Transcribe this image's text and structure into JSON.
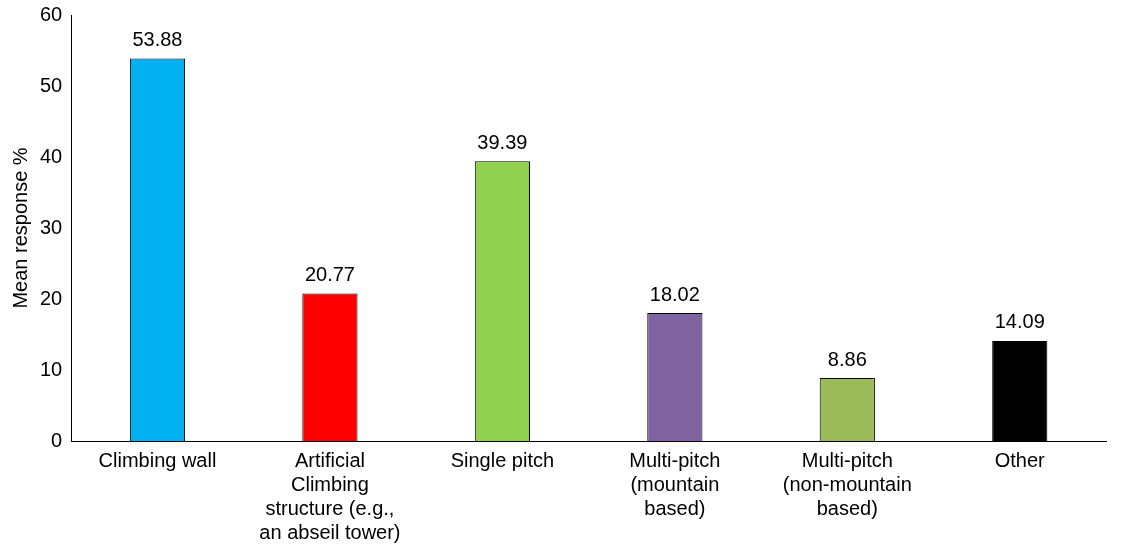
{
  "chart_data": {
    "type": "bar",
    "ylabel": "Mean response %",
    "categories": [
      "Climbing wall",
      "Artificial Climbing structure (e.g., an abseil tower)",
      "Single pitch",
      "Multi-pitch (mountain based)",
      "Multi-pitch (non-mountain based)",
      "Other"
    ],
    "values": [
      53.88,
      20.77,
      39.39,
      18.02,
      8.86,
      14.09
    ],
    "colors": [
      "#00b0f0",
      "#ff0000",
      "#92d050",
      "#8064a2",
      "#9bbb59",
      "#000000"
    ],
    "ylim": [
      0,
      60
    ],
    "yticks": [
      0,
      10,
      20,
      30,
      40,
      50,
      60
    ],
    "grid": false,
    "legend": false,
    "data_labels": true
  }
}
